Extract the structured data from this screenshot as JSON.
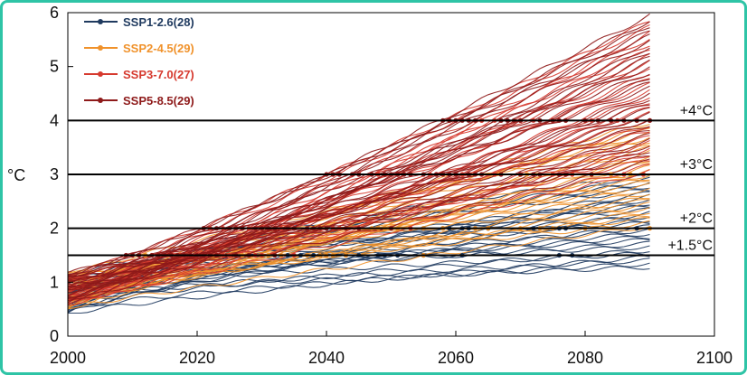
{
  "chart_data": {
    "type": "line",
    "title": "",
    "xlabel": "",
    "ylabel": "°C",
    "xlim": [
      2000,
      2100
    ],
    "ylim": [
      0,
      6
    ],
    "x_ticks": [
      "2000",
      "2020",
      "2040",
      "2060",
      "2080",
      "2100"
    ],
    "y_ticks": [
      "0",
      "1",
      "2",
      "3",
      "4",
      "5",
      "6"
    ],
    "grid": false,
    "legend": "top-left",
    "thresholds": [
      {
        "label": "+1.5°C",
        "value": 1.5
      },
      {
        "label": "+2°C",
        "value": 2
      },
      {
        "label": "+3°C",
        "value": 3
      },
      {
        "label": "+4°C",
        "value": 4
      }
    ],
    "series": [
      {
        "name": "SSP1-2.6(28)",
        "color": "#1f3a5f",
        "start": [
          0.35,
          1.15
        ],
        "end": [
          1.25,
          3.0
        ],
        "count": 28
      },
      {
        "name": "SSP2-4.5(29)",
        "color": "#f0922b",
        "start": [
          0.5,
          1.2
        ],
        "end": [
          2.0,
          4.0
        ],
        "count": 29
      },
      {
        "name": "SSP3-7.0(27)",
        "color": "#d63a2f",
        "start": [
          0.6,
          1.2
        ],
        "end": [
          3.0,
          5.9
        ],
        "count": 27
      },
      {
        "name": "SSP5-8.5(29)",
        "color": "#8e1a1a",
        "start": [
          0.6,
          1.2
        ],
        "end": [
          3.2,
          6.0
        ],
        "count": 29
      }
    ]
  }
}
